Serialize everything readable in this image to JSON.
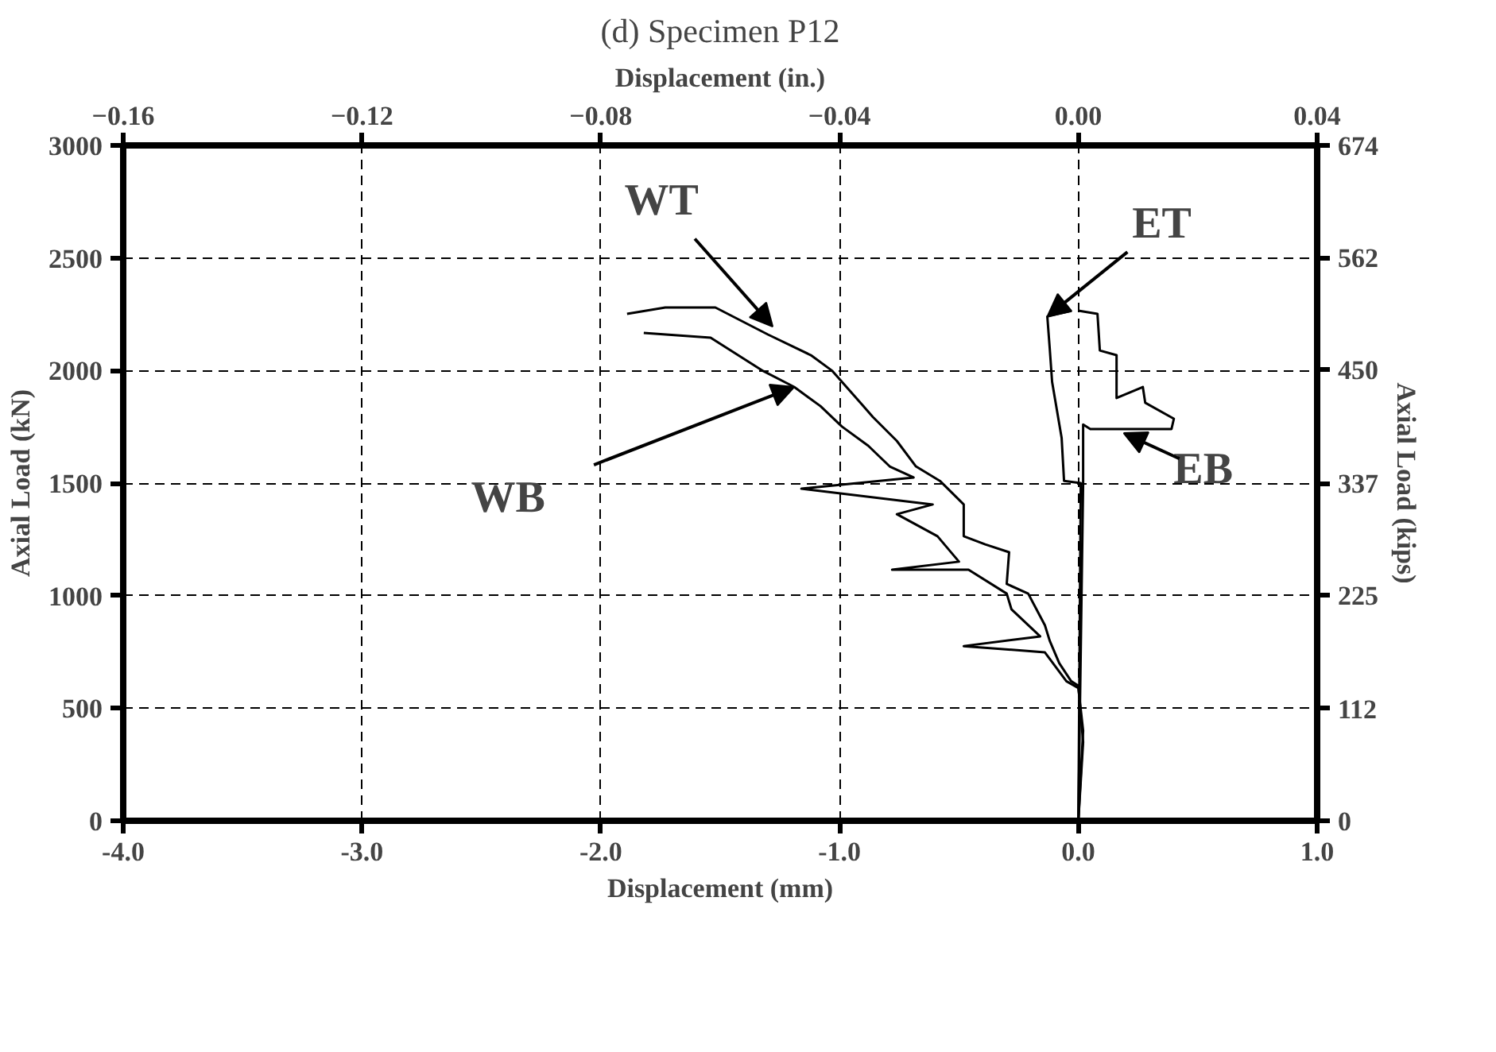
{
  "chart_data": {
    "type": "line",
    "title": "(d) Specimen P12",
    "xlabel": "Displacement (mm)",
    "ylabel": "Axial Load (kN)",
    "y2label": "Axial Load (kips)",
    "x2label": "Displacement (in.)",
    "xlim": [
      -4,
      1
    ],
    "xticks": [
      {
        "value": -4,
        "label": "-4.0"
      },
      {
        "value": -3,
        "label": "-3.0"
      },
      {
        "value": -2,
        "label": "-2.0"
      },
      {
        "value": -1,
        "label": "-1.0"
      },
      {
        "value": 0,
        "label": "0.0"
      },
      {
        "value": 1,
        "label": "1.0"
      }
    ],
    "x2lim": [
      -0.16,
      0.04
    ],
    "x2ticks": [
      -0.16,
      -0.12,
      -0.08,
      -0.04,
      {
        "value": 0,
        "label": "0.00"
      },
      0.04
    ],
    "ylim": [
      0,
      3000
    ],
    "yticks": [
      0,
      500,
      1000,
      1500,
      2000,
      2500,
      3000
    ],
    "y2lim": [
      0,
      674
    ],
    "y2ticks": [
      0,
      112,
      225,
      337,
      450,
      562,
      674
    ],
    "grid": true,
    "marker": "none",
    "line_style": "solid",
    "series": [
      {
        "color": "#000000",
        "x": [
          0.0,
          0.02,
          0.0,
          -0.03,
          -0.08,
          -0.12,
          -0.14,
          -0.21,
          -0.3,
          -0.29,
          -0.39,
          -0.48,
          -0.48,
          -0.58,
          -0.68,
          -0.76,
          -0.86,
          -0.93,
          -1.03,
          -1.12,
          -1.3,
          -1.52,
          -1.73,
          -1.89
        ],
        "values": [
          0,
          350,
          600,
          620,
          700,
          800,
          868,
          1009,
          1052,
          1193,
          1228,
          1264,
          1405,
          1510,
          1574,
          1687,
          1793,
          1878,
          1998,
          2068,
          2160,
          2280,
          2280,
          2252
        ]
      },
      {
        "color": "#000000",
        "x": [
          0.0,
          0.02,
          0.0,
          -0.05,
          -0.14,
          -0.48,
          -0.16,
          -0.28,
          -0.3,
          -0.46,
          -0.78,
          -0.5,
          -0.59,
          -0.76,
          -0.61,
          -1.16,
          -0.69,
          -0.79,
          -0.88,
          -0.99,
          -1.08,
          -1.19,
          -1.32,
          -1.54,
          -1.82
        ],
        "values": [
          0,
          400,
          590,
          620,
          748,
          776,
          819,
          939,
          1009,
          1115,
          1115,
          1151,
          1264,
          1362,
          1405,
          1475,
          1525,
          1574,
          1666,
          1751,
          1842,
          1927,
          1998,
          2146,
          2167
        ]
      },
      {
        "color": "#000000",
        "x": [
          0.0,
          0.01,
          -0.06,
          -0.07,
          -0.11,
          -0.12,
          -0.13,
          -0.03
        ],
        "values": [
          0,
          1500,
          1510,
          1700,
          1950,
          2100,
          2240,
          2266
        ]
      },
      {
        "color": "#000000",
        "x": [
          0.0,
          0.02,
          0.02,
          0.05,
          0.39,
          0.4,
          0.28,
          0.27,
          0.16,
          0.16,
          0.09,
          0.08,
          0.0
        ],
        "values": [
          0,
          1500,
          1760,
          1740,
          1740,
          1786,
          1857,
          1927,
          1878,
          2068,
          2089,
          2252,
          2266
        ]
      }
    ],
    "annotations": [
      {
        "text": "WT",
        "x": -1.28,
        "y": 2195
      },
      {
        "text": "WB",
        "x": -1.19,
        "y": 1927
      },
      {
        "text": "ET",
        "x": -0.13,
        "y": 2240
      },
      {
        "text": "EB",
        "x": 0.19,
        "y": 1722
      }
    ]
  }
}
